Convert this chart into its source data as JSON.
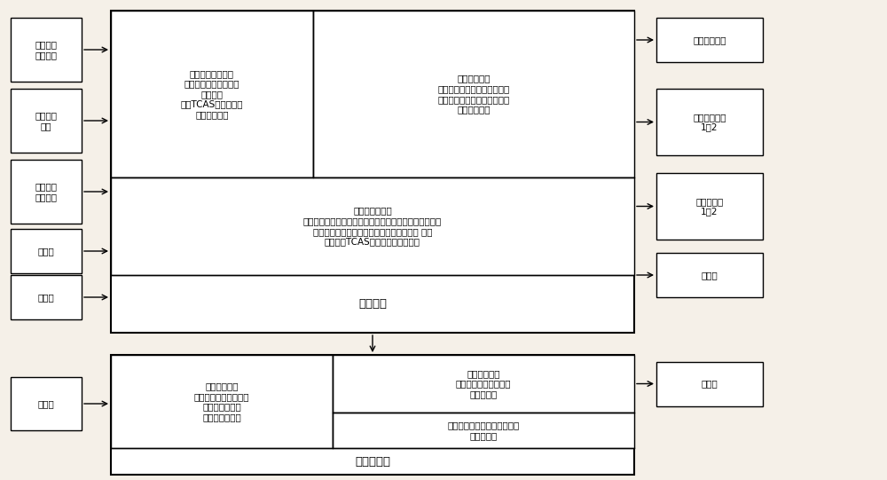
{
  "bg_color": "#f5f0e8",
  "box_color": "#ffffff",
  "line_color": "#000000",
  "text_color": "#000000",
  "fig_w": 10.0,
  "fig_h": 5.41,
  "dpi": 100,
  "left_boxes": [
    {
      "label": "故障诊断\n设备接口",
      "row": 0
    },
    {
      "label": "监测信号\n接口",
      "row": 1
    },
    {
      "label": "离散控制\n信号接口",
      "row": 2
    },
    {
      "label": "显示器",
      "row": 3
    },
    {
      "label": "控制盒",
      "row": 4
    }
  ],
  "right_boxes": [
    {
      "label": "耳机或扬声器",
      "row": 0
    },
    {
      "label": "无线电高度表\n1，2",
      "row": 1
    },
    {
      "label": "气压高度表\n1，2",
      "row": 2
    },
    {
      "label": "同步器",
      "row": 3
    }
  ],
  "top_left_text": "系统状态数据采集\n（包括高度数据、控制\n线信号）\n（原TCAS和应答机需\n要采集数据）",
  "top_right_text": "实时数据处理\n（包括，接收数据再处理，模\n型解算，告警信息产生，询问\n信号产生。）",
  "mid_text": "设备配置（包括\n显示器配置，飞行高度限制配置，航向信息输入源配置，\n高度信息输入源配置，无线电高度类型配置 等）\n（包括原TCAS和应答机设备配置）",
  "main_proc_text": "主处理器",
  "bot_left_text": "接收数据处理\n（包括询问信息提取，\n询问类型识别，\n应答信息提取）",
  "bot_right_top_text": "发射数据处理\n（产生各种询问信号，\n应答信号）",
  "bot_right_bot_text": "天线选择控制（选择顶部还是\n底部天线）",
  "bot_proc_text": "报文处理器",
  "recv_text": "接收机",
  "send_text": "发射机",
  "fs_small": 7.5,
  "fs_large": 9.5
}
